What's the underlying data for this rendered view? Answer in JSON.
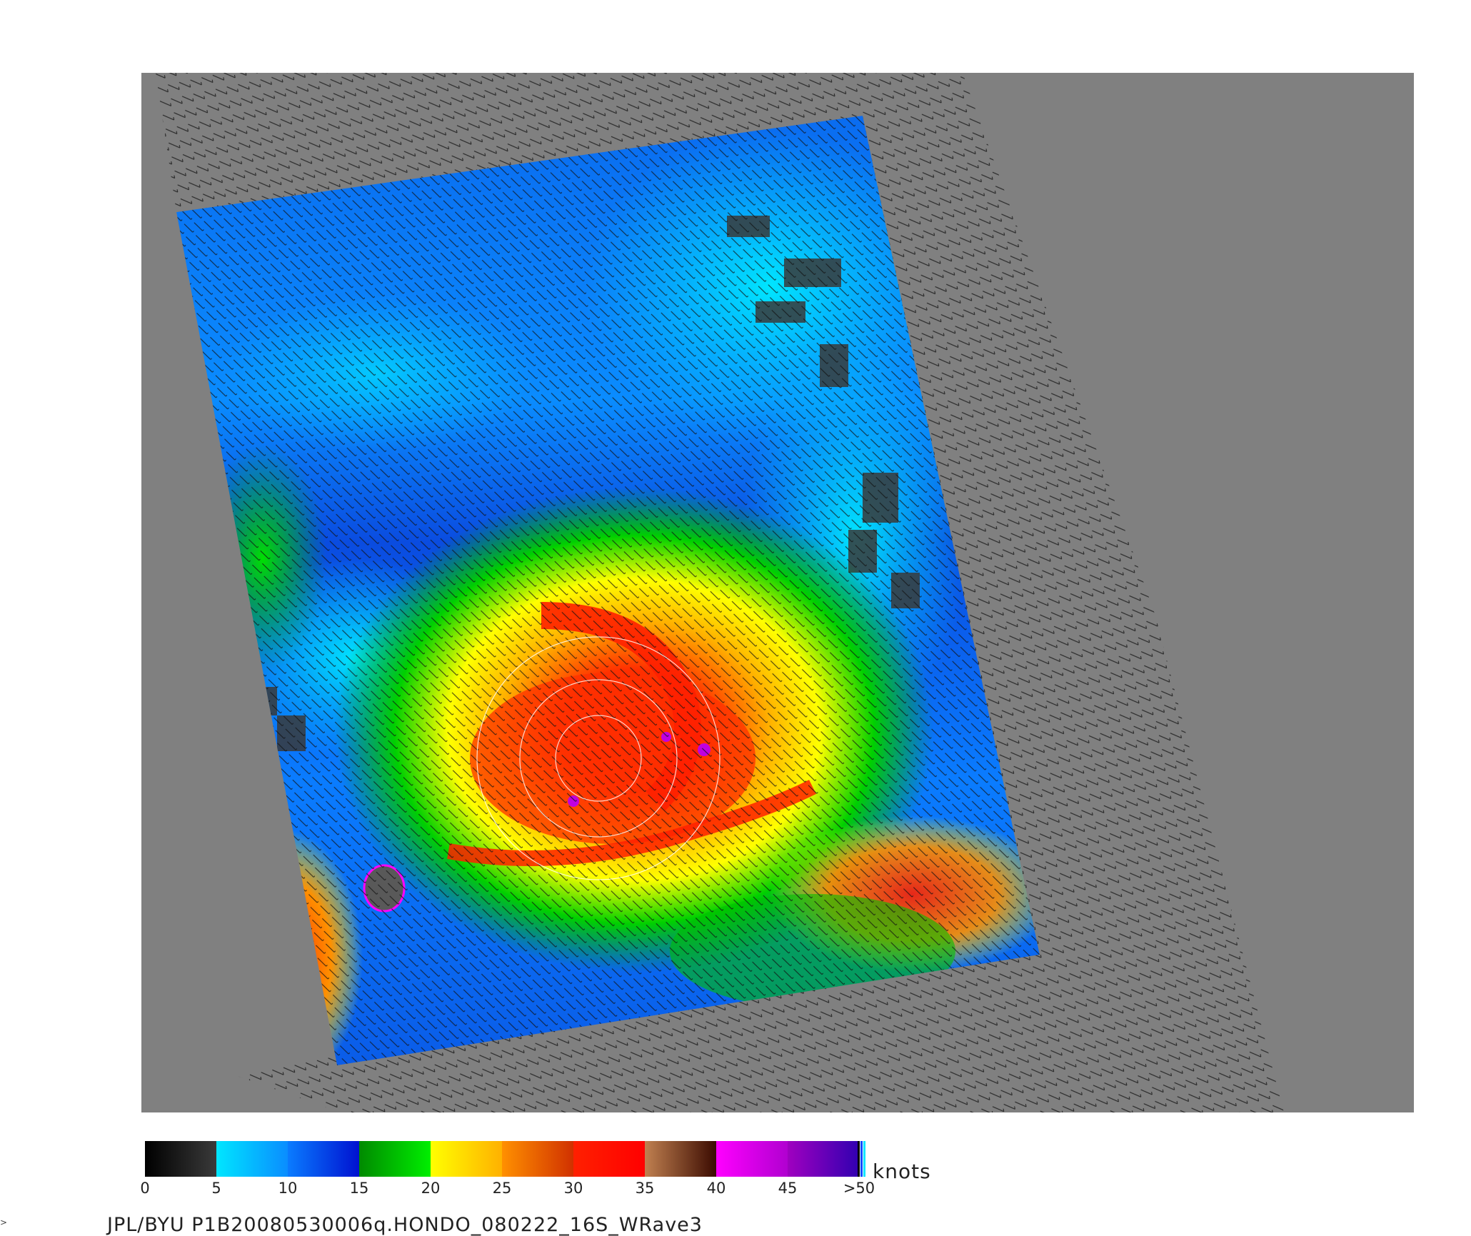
{
  "map": {
    "product": "Scatterometer ocean surface wind speed and direction",
    "storm_center_label": "HONDO",
    "background_color": "#808080"
  },
  "colorbar": {
    "units": "knots",
    "ticks": [
      "0",
      "5",
      "10",
      "15",
      "20",
      "25",
      "30",
      "35",
      "40",
      "45",
      ">50"
    ],
    "ramps": [
      {
        "range": "0-5",
        "from": "#000000",
        "to": "#3a3a3a"
      },
      {
        "range": "5-10",
        "from": "#00e6ff",
        "to": "#0a8cff"
      },
      {
        "range": "10-15",
        "from": "#0a7cff",
        "to": "#0010d0"
      },
      {
        "range": "15-20",
        "from": "#008a00",
        "to": "#00f000"
      },
      {
        "range": "20-25",
        "from": "#ffff00",
        "to": "#ffb000"
      },
      {
        "range": "25-30",
        "from": "#ff9000",
        "to": "#d03000"
      },
      {
        "range": "30-35",
        "from": "#ff2000",
        "to": "#ff0000"
      },
      {
        "range": "35-40",
        "from": "#c08050",
        "to": "#3a0a00"
      },
      {
        "range": "40-45",
        "from": "#ff00ff",
        "to": "#b000d0"
      },
      {
        "range": "45-50",
        "from": "#a000c0",
        "to": "#3000b0"
      }
    ]
  },
  "footer": {
    "text": "JPL/BYU  P1B20080530006q.HONDO_080222_16S_WRave3"
  }
}
